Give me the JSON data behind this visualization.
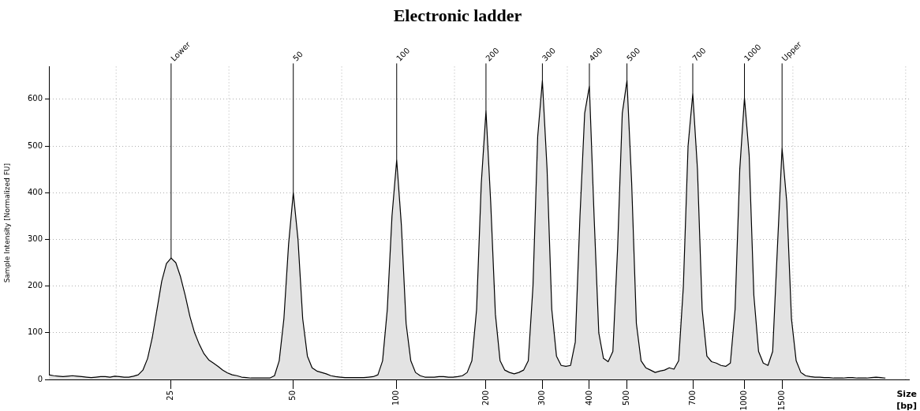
{
  "chart_data": {
    "type": "area",
    "title": "Electronic ladder",
    "ylabel": "Sample Intensity [Normalized FU]",
    "xlabel": "Size [bp]",
    "categories": [
      null,
      null,
      null,
      null,
      null,
      null,
      null,
      null,
      null,
      null,
      null,
      null,
      null,
      null,
      null,
      null,
      null,
      null,
      null,
      null,
      null,
      null,
      null,
      null,
      null,
      null,
      "25",
      null,
      null,
      null,
      null,
      null,
      null,
      null,
      null,
      null,
      null,
      null,
      null,
      null,
      null,
      null,
      null,
      null,
      null,
      null,
      null,
      null,
      null,
      null,
      null,
      null,
      "50",
      null,
      null,
      null,
      null,
      null,
      null,
      null,
      null,
      null,
      null,
      null,
      null,
      null,
      null,
      null,
      null,
      null,
      null,
      null,
      null,
      null,
      "100",
      null,
      null,
      null,
      null,
      null,
      null,
      null,
      null,
      null,
      null,
      null,
      null,
      null,
      null,
      null,
      null,
      null,
      null,
      "200",
      null,
      null,
      null,
      null,
      null,
      null,
      null,
      null,
      null,
      null,
      null,
      "300",
      null,
      null,
      null,
      null,
      null,
      null,
      null,
      null,
      null,
      "400",
      null,
      null,
      null,
      null,
      null,
      null,
      null,
      "500",
      null,
      null,
      null,
      null,
      null,
      null,
      null,
      null,
      null,
      null,
      null,
      null,
      null,
      "700",
      null,
      null,
      null,
      null,
      null,
      null,
      null,
      null,
      null,
      null,
      "1000",
      null,
      null,
      null,
      null,
      null,
      null,
      null,
      "1500",
      null,
      null,
      null,
      null,
      null,
      null,
      null,
      null,
      null,
      null,
      null,
      null,
      null,
      null,
      null,
      null,
      null,
      null,
      null,
      null,
      null,
      null,
      null,
      null,
      null,
      null,
      null
    ],
    "series": [
      {
        "color": "#e3e3e3",
        "values": [
          10,
          8,
          7,
          6,
          7,
          8,
          7,
          6,
          5,
          4,
          5,
          6,
          6,
          5,
          7,
          6,
          5,
          5,
          7,
          10,
          20,
          45,
          90,
          150,
          210,
          248,
          260,
          250,
          220,
          180,
          135,
          100,
          75,
          55,
          42,
          35,
          28,
          20,
          14,
          10,
          8,
          5,
          4,
          3,
          3,
          3,
          3,
          3,
          8,
          40,
          130,
          290,
          400,
          300,
          130,
          50,
          25,
          18,
          15,
          12,
          8,
          6,
          5,
          4,
          4,
          4,
          4,
          4,
          5,
          6,
          10,
          40,
          150,
          350,
          470,
          330,
          120,
          40,
          15,
          8,
          5,
          5,
          5,
          6,
          6,
          5,
          5,
          6,
          8,
          15,
          40,
          150,
          420,
          575,
          380,
          140,
          40,
          20,
          15,
          12,
          15,
          20,
          40,
          200,
          520,
          640,
          450,
          150,
          50,
          30,
          28,
          30,
          80,
          350,
          570,
          628,
          350,
          100,
          45,
          38,
          60,
          280,
          570,
          640,
          420,
          120,
          40,
          25,
          20,
          15,
          18,
          20,
          25,
          22,
          40,
          200,
          500,
          612,
          450,
          150,
          50,
          38,
          35,
          30,
          28,
          35,
          150,
          450,
          603,
          480,
          180,
          60,
          35,
          30,
          60,
          280,
          495,
          380,
          130,
          40,
          15,
          8,
          6,
          5,
          5,
          4,
          4,
          3,
          3,
          3,
          4,
          4,
          3,
          3,
          3,
          4,
          5,
          4,
          3,
          null,
          null,
          null,
          null,
          null
        ]
      }
    ],
    "ylim": [
      0,
      670
    ],
    "yticks": [
      0,
      100,
      200,
      300,
      400,
      500,
      600
    ],
    "grid": true,
    "legend": false,
    "ref_lines": [
      {
        "axis": "x",
        "value": "25",
        "label": "Lower"
      },
      {
        "axis": "x",
        "value": "50",
        "label": "50"
      },
      {
        "axis": "x",
        "value": "100",
        "label": "100"
      },
      {
        "axis": "x",
        "value": "200",
        "label": "200"
      },
      {
        "axis": "x",
        "value": "300",
        "label": "300"
      },
      {
        "axis": "x",
        "value": "400",
        "label": "400"
      },
      {
        "axis": "x",
        "value": "500",
        "label": "500"
      },
      {
        "axis": "x",
        "value": "700",
        "label": "700"
      },
      {
        "axis": "x",
        "value": "1000",
        "label": "1000"
      },
      {
        "axis": "x",
        "value": "1500",
        "label": "Upper"
      }
    ]
  }
}
